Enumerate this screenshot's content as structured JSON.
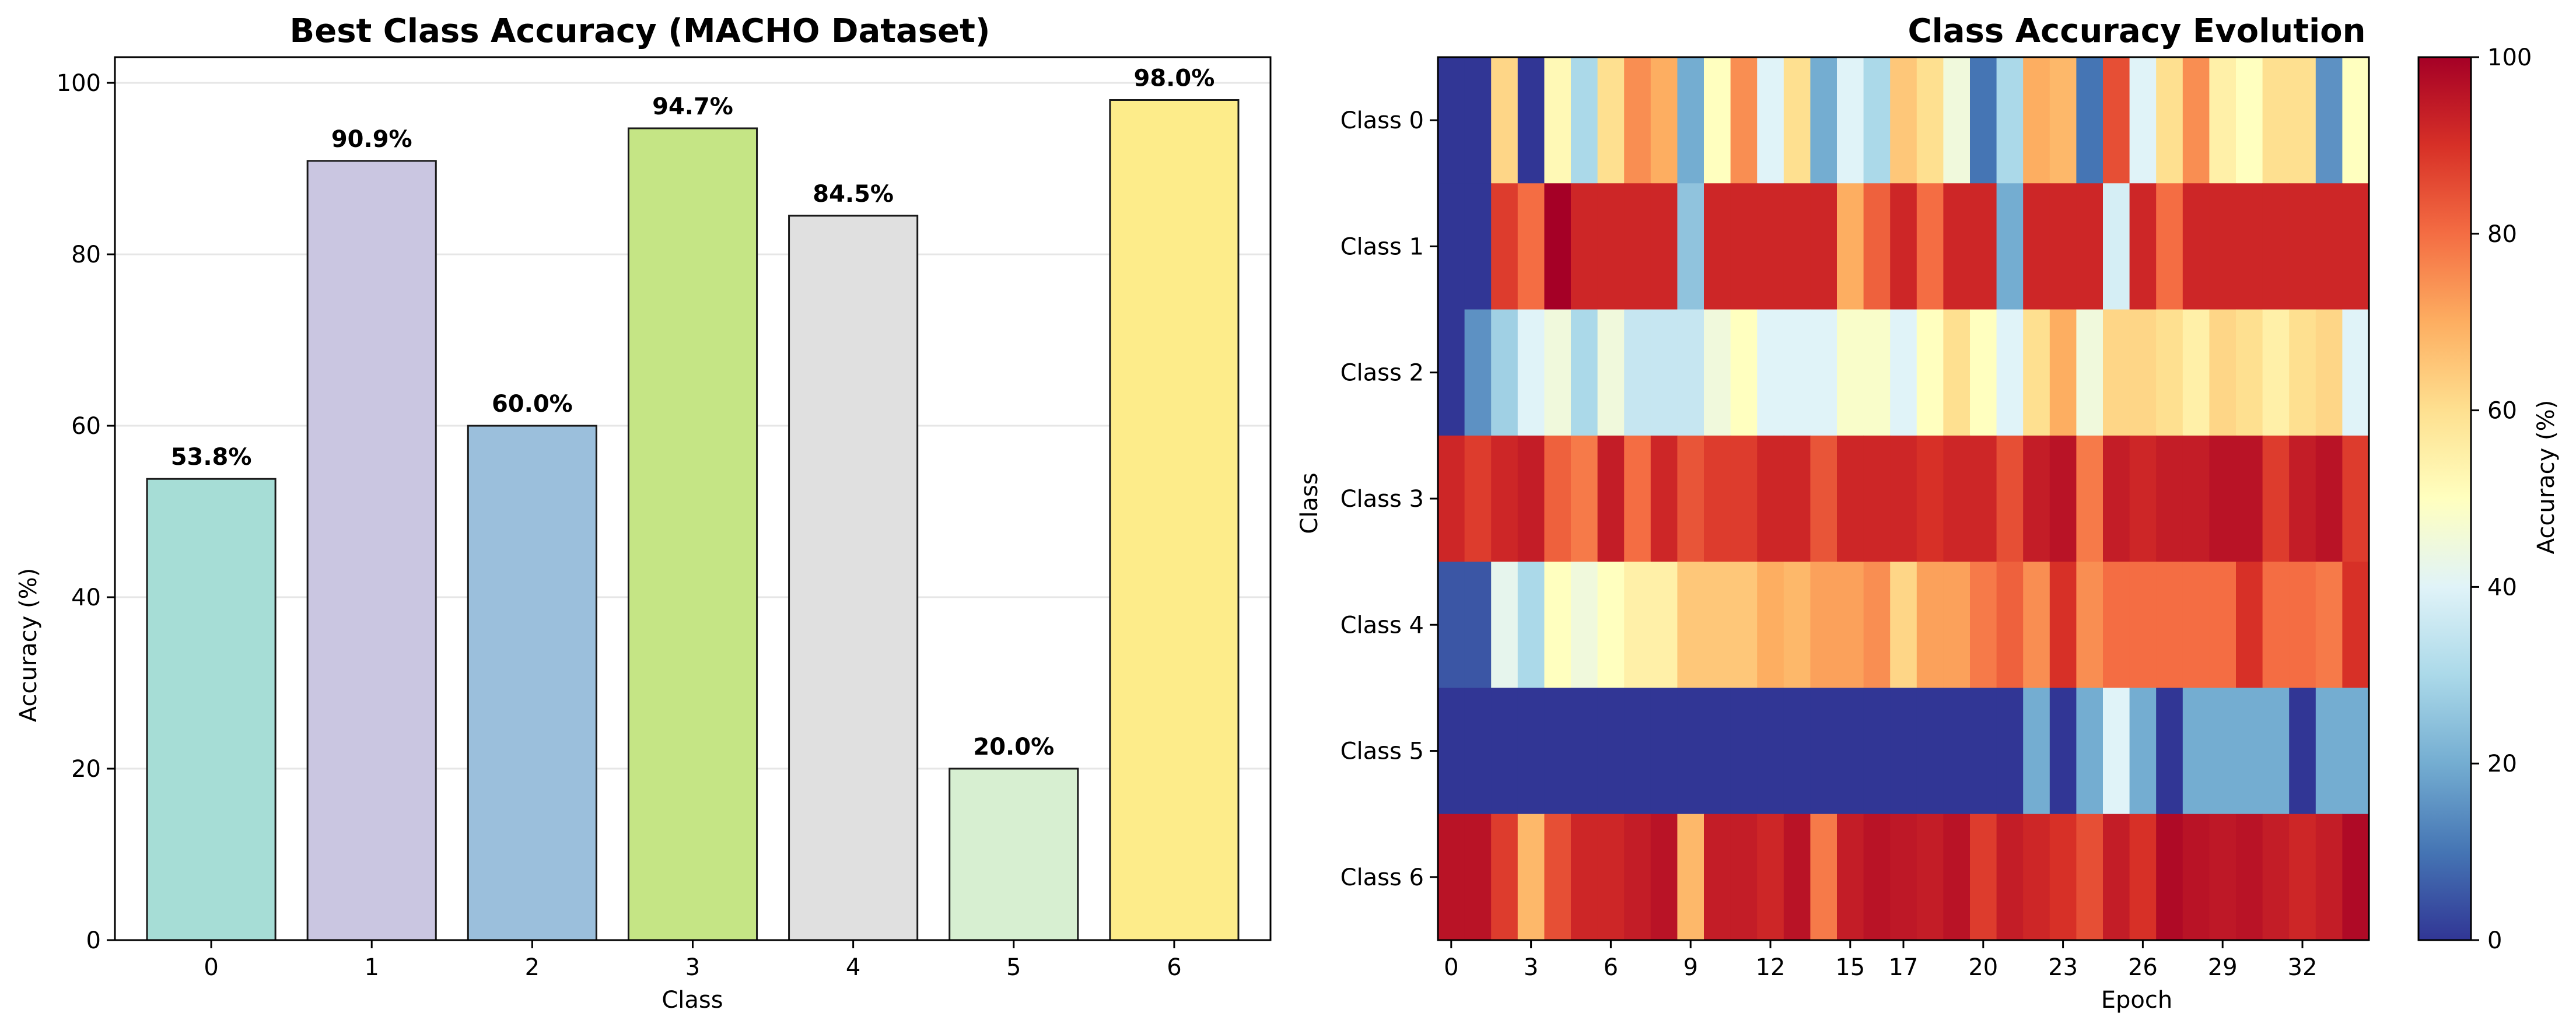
{
  "bar_chart": {
    "type": "bar",
    "title": "Best Class Accuracy (MACHO Dataset)",
    "xlabel": "Class",
    "ylabel": "Accuracy (%)",
    "categories": [
      "0",
      "1",
      "2",
      "3",
      "4",
      "5",
      "6"
    ],
    "values": [
      53.8,
      90.9,
      60.0,
      94.7,
      84.5,
      20.0,
      98.0
    ],
    "value_labels": [
      "53.8%",
      "90.9%",
      "60.0%",
      "94.7%",
      "84.5%",
      "20.0%",
      "98.0%"
    ],
    "bar_colors": [
      "#a6ddd6",
      "#cac6e1",
      "#9bbfdc",
      "#c5e585",
      "#e0e0e0",
      "#d7efd1",
      "#fdec8a"
    ],
    "ylim": [
      0,
      103
    ],
    "yticks": [
      0,
      20,
      40,
      60,
      80,
      100
    ],
    "ytick_labels": [
      "0",
      "20",
      "40",
      "60",
      "80",
      "100"
    ],
    "grid": true
  },
  "heatmap": {
    "type": "heatmap",
    "title": "Class Accuracy Evolution",
    "xlabel": "Epoch",
    "ylabel": "Class",
    "rows": [
      "Class 0",
      "Class 1",
      "Class 2",
      "Class 3",
      "Class 4",
      "Class 5",
      "Class 6"
    ],
    "xticks": [
      0,
      3,
      6,
      9,
      12,
      15,
      17,
      20,
      23,
      26,
      29,
      32
    ],
    "xtick_labels": [
      "0",
      "3",
      "6",
      "9",
      "12",
      "15",
      "17",
      "20",
      "23",
      "26",
      "29",
      "32"
    ],
    "n_epochs": 35,
    "values": [
      [
        0,
        0,
        62,
        0,
        52,
        30,
        60,
        75,
        70,
        20,
        50,
        75,
        40,
        60,
        20,
        40,
        30,
        65,
        60,
        45,
        10,
        30,
        70,
        68,
        10,
        85,
        40,
        60,
        75,
        55,
        50,
        60,
        60,
        15,
        50
      ],
      [
        0,
        0,
        88,
        80,
        100,
        92,
        92,
        92,
        92,
        25,
        92,
        92,
        92,
        92,
        92,
        70,
        82,
        92,
        80,
        92,
        92,
        20,
        92,
        92,
        92,
        38,
        92,
        80,
        92,
        92,
        92,
        92,
        92,
        92,
        92
      ],
      [
        0,
        15,
        28,
        40,
        45,
        30,
        45,
        35,
        35,
        35,
        45,
        50,
        40,
        40,
        40,
        48,
        48,
        40,
        50,
        60,
        50,
        40,
        60,
        70,
        45,
        62,
        62,
        60,
        55,
        62,
        60,
        55,
        60,
        62,
        40
      ],
      [
        92,
        88,
        92,
        94,
        82,
        78,
        94,
        80,
        92,
        84,
        88,
        88,
        92,
        92,
        84,
        92,
        92,
        92,
        90,
        92,
        92,
        85,
        94,
        96,
        78,
        94,
        92,
        94,
        94,
        96,
        96,
        88,
        94,
        96,
        88
      ],
      [
        5,
        5,
        42,
        30,
        50,
        45,
        50,
        55,
        55,
        65,
        65,
        65,
        70,
        68,
        72,
        72,
        75,
        62,
        72,
        72,
        78,
        82,
        75,
        90,
        75,
        80,
        80,
        80,
        80,
        80,
        90,
        80,
        80,
        78,
        90
      ],
      [
        0,
        0,
        0,
        0,
        0,
        0,
        0,
        0,
        0,
        0,
        0,
        0,
        0,
        0,
        0,
        0,
        0,
        0,
        0,
        0,
        0,
        0,
        20,
        0,
        20,
        40,
        20,
        0,
        20,
        20,
        20,
        20,
        0,
        20,
        20
      ],
      [
        96,
        96,
        88,
        68,
        85,
        92,
        92,
        94,
        96,
        68,
        94,
        94,
        92,
        96,
        78,
        94,
        96,
        95,
        94,
        96,
        88,
        94,
        92,
        90,
        85,
        94,
        90,
        98,
        96,
        95,
        96,
        94,
        92,
        94,
        98
      ]
    ],
    "vmin": 0,
    "vmax": 100,
    "colorbar_label": "Accuracy (%)",
    "colorbar_ticks": [
      0,
      20,
      40,
      60,
      80,
      100
    ],
    "colorbar_tick_labels": [
      "0",
      "20",
      "40",
      "60",
      "80",
      "100"
    ]
  }
}
